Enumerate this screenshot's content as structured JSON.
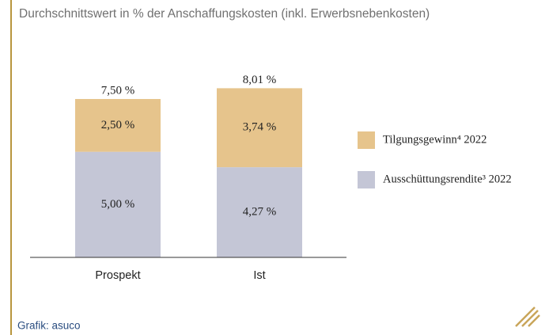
{
  "chart_data": {
    "type": "stacked_bar",
    "title": "Durchschnittswert in % der Anschaffungskosten (inkl. Erwerbsnebenkosten)",
    "categories": [
      "Prospekt",
      "Ist"
    ],
    "series": [
      {
        "name": "Ausschüttungsrendite³ 2022",
        "color": "#c4c6d6",
        "values": [
          5.0,
          4.27
        ],
        "value_labels": [
          "5,00 %",
          "4,27 %"
        ]
      },
      {
        "name": "Tilgungsgewinn⁴ 2022",
        "color": "#e6c48c",
        "values": [
          2.5,
          3.74
        ],
        "value_labels": [
          "2,50 %",
          "3,74 %"
        ]
      }
    ],
    "totals": [
      7.5,
      8.01
    ],
    "total_labels": [
      "7,50 %",
      "8,01 %"
    ],
    "ylim": [
      0,
      11.25
    ],
    "source": "Grafik: asuco"
  }
}
